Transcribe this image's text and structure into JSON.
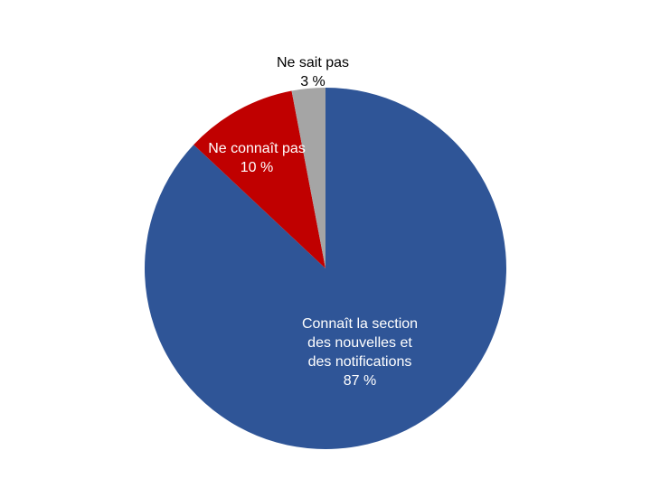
{
  "chart_data": {
    "type": "pie",
    "start": "top",
    "direction": "clockwise",
    "slices": [
      {
        "label": "Connaît la section des nouvelles et des notifications",
        "lines": [
          "Connaît la section",
          "des nouvelles et",
          "des notifications"
        ],
        "value": 87,
        "value_label": "87 %",
        "color": "#2F5597",
        "label_color": "#FFFFFF"
      },
      {
        "label": "Ne connaît pas",
        "lines": [
          "Ne connaît pas"
        ],
        "value": 10,
        "value_label": "10 %",
        "color": "#C00000",
        "label_color": "#FFFFFF"
      },
      {
        "label": "Ne sait pas",
        "lines": [
          "Ne sait pas"
        ],
        "value": 3,
        "value_label": "3 %",
        "color": "#A5A5A5",
        "label_color": "#000000"
      }
    ]
  }
}
